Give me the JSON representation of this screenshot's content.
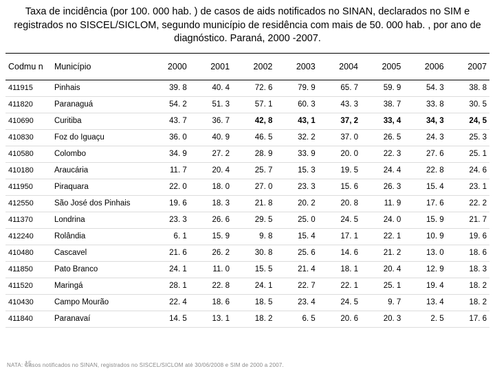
{
  "title": "Taxa de incidência (por 100. 000 hab. ) de  casos de aids notificados no SINAN, declarados no SIM e registrados no SISCEL/SICLOM, segundo município de residência com mais de 50. 000 hab. , por ano de diagnóstico. Paraná, 2000 -2007.",
  "columns": {
    "codmun": "Codmu n",
    "municipio": "Município",
    "y2000": "2000",
    "y2001": "2001",
    "y2002": "2002",
    "y2003": "2003",
    "y2004": "2004",
    "y2005": "2005",
    "y2006": "2006",
    "y2007": "2007"
  },
  "rows": [
    {
      "code": "411915",
      "muni": "Pinhais",
      "v": [
        "39. 8",
        "40. 4",
        "72. 6",
        "79. 9",
        "65. 7",
        "59. 9",
        "54. 3",
        "38. 8"
      ],
      "bold": false
    },
    {
      "code": "411820",
      "muni": "Paranaguá",
      "v": [
        "54. 2",
        "51. 3",
        "57. 1",
        "60. 3",
        "43. 3",
        "38. 7",
        "33. 8",
        "30. 5"
      ],
      "bold": false
    },
    {
      "code": "410690",
      "muni": "Curitiba",
      "v": [
        "43. 7",
        "36. 7",
        "42, 8",
        "43, 1",
        "37, 2",
        "33, 4",
        "34, 3",
        "24, 5"
      ],
      "bold": true
    },
    {
      "code": "410830",
      "muni": "Foz do Iguaçu",
      "v": [
        "36. 0",
        "40. 9",
        "46. 5",
        "32. 2",
        "37. 0",
        "26. 5",
        "24. 3",
        "25. 3"
      ],
      "bold": false
    },
    {
      "code": "410580",
      "muni": "Colombo",
      "v": [
        "34. 9",
        "27. 2",
        "28. 9",
        "33. 9",
        "20. 0",
        "22. 3",
        "27. 6",
        "25. 1"
      ],
      "bold": false
    },
    {
      "code": "410180",
      "muni": "Araucária",
      "v": [
        "11. 7",
        "20. 4",
        "25. 7",
        "15. 3",
        "19. 5",
        "24. 4",
        "22. 8",
        "24. 6"
      ],
      "bold": false
    },
    {
      "code": "411950",
      "muni": "Piraquara",
      "v": [
        "22. 0",
        "18. 0",
        "27. 0",
        "23. 3",
        "15. 6",
        "26. 3",
        "15. 4",
        "23. 1"
      ],
      "bold": false
    },
    {
      "code": "412550",
      "muni": "São José dos Pinhais",
      "v": [
        "19. 6",
        "18. 3",
        "21. 8",
        "20. 2",
        "20. 8",
        "11. 9",
        "17. 6",
        "22. 2"
      ],
      "bold": false
    },
    {
      "code": "411370",
      "muni": "Londrina",
      "v": [
        "23. 3",
        "26. 6",
        "29. 5",
        "25. 0",
        "24. 5",
        "24. 0",
        "15. 9",
        "21. 7"
      ],
      "bold": false
    },
    {
      "code": "412240",
      "muni": "Rolândia",
      "v": [
        "6. 1",
        "15. 9",
        "9. 8",
        "15. 4",
        "17. 1",
        "22. 1",
        "10. 9",
        "19. 6"
      ],
      "bold": false
    },
    {
      "code": "410480",
      "muni": "Cascavel",
      "v": [
        "21. 6",
        "26. 2",
        "30. 8",
        "25. 6",
        "14. 6",
        "21. 2",
        "13. 0",
        "18. 6"
      ],
      "bold": false
    },
    {
      "code": "411850",
      "muni": "Pato Branco",
      "v": [
        "24. 1",
        "11. 0",
        "15. 5",
        "21. 4",
        "18. 1",
        "20. 4",
        "12. 9",
        "18. 3"
      ],
      "bold": false
    },
    {
      "code": "411520",
      "muni": "Maringá",
      "v": [
        "28. 1",
        "22. 8",
        "24. 1",
        "22. 7",
        "22. 1",
        "25. 1",
        "19. 4",
        "18. 2"
      ],
      "bold": false
    },
    {
      "code": "410430",
      "muni": "Campo Mourão",
      "v": [
        "22. 4",
        "18. 6",
        "18. 5",
        "23. 4",
        "24. 5",
        "9. 7",
        "13. 4",
        "18. 2"
      ],
      "bold": false
    },
    {
      "code": "411840",
      "muni": "Paranavaí",
      "v": [
        "14. 5",
        "13. 1",
        "18. 2",
        "6. 5",
        "20. 6",
        "20. 3",
        "2. 5",
        "17. 6"
      ],
      "bold": false
    }
  ],
  "footnote": "NATA: Casos notificados no SINAN, registrados no SISCEL/SICLOM até 30/06/2008 e SIM de 2000 a 2007.",
  "pagenum": "15",
  "colors": {
    "text": "#000000",
    "grid": "#dcdcdc",
    "rule": "#000000",
    "bg": "#ffffff"
  },
  "fonts": {
    "title_size": 14.5,
    "header_size": 12.5,
    "cell_size": 11.5
  }
}
